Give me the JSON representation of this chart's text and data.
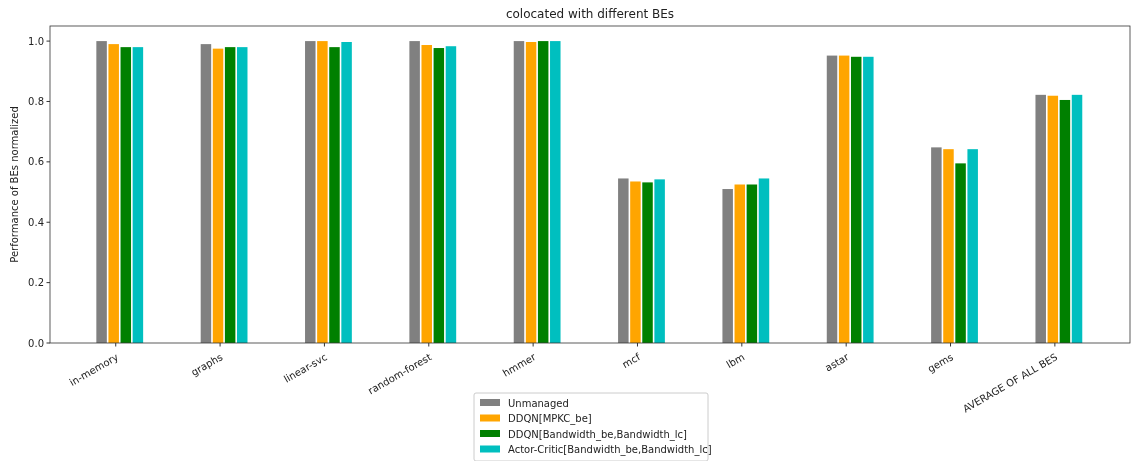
{
  "chart_data": {
    "type": "bar",
    "title": "colocated with different BEs",
    "ylabel": "Performance of BEs normalized",
    "categories": [
      "in-memory",
      "graphs",
      "linear-svc",
      "random-forest",
      "hmmer",
      "mcf",
      "lbm",
      "astar",
      "gems",
      "AVERAGE OF ALL BES"
    ],
    "series": [
      {
        "name": "Unmanaged",
        "color": "#808080",
        "values": [
          1.0,
          0.99,
          1.0,
          1.0,
          1.0,
          0.545,
          0.51,
          0.952,
          0.648,
          0.822
        ]
      },
      {
        "name": "DDQN[MPKC_be]",
        "color": "#ffa500",
        "values": [
          0.99,
          0.975,
          1.0,
          0.987,
          0.997,
          0.535,
          0.525,
          0.952,
          0.642,
          0.819
        ]
      },
      {
        "name": "DDQN[Bandwidth_be,Bandwidth_lc]",
        "color": "#008000",
        "values": [
          0.98,
          0.98,
          0.98,
          0.977,
          1.0,
          0.532,
          0.525,
          0.948,
          0.595,
          0.805
        ]
      },
      {
        "name": "Actor-Critic[Bandwidth_be,Bandwidth_lc]",
        "color": "#00bfbf",
        "values": [
          0.98,
          0.98,
          0.997,
          0.983,
          1.0,
          0.542,
          0.545,
          0.948,
          0.642,
          0.822
        ]
      }
    ],
    "ylim": [
      0,
      1.05
    ],
    "yticks": [
      {
        "value": 0,
        "label": "0.0"
      },
      {
        "value": 0.2,
        "label": "0.2"
      },
      {
        "value": 0.4,
        "label": "0.4"
      },
      {
        "value": 0.6,
        "label": "0.6"
      },
      {
        "value": 0.8,
        "label": "0.8"
      },
      {
        "value": 1.0,
        "label": "1.0"
      }
    ],
    "grid": false,
    "legend": "bottom"
  }
}
